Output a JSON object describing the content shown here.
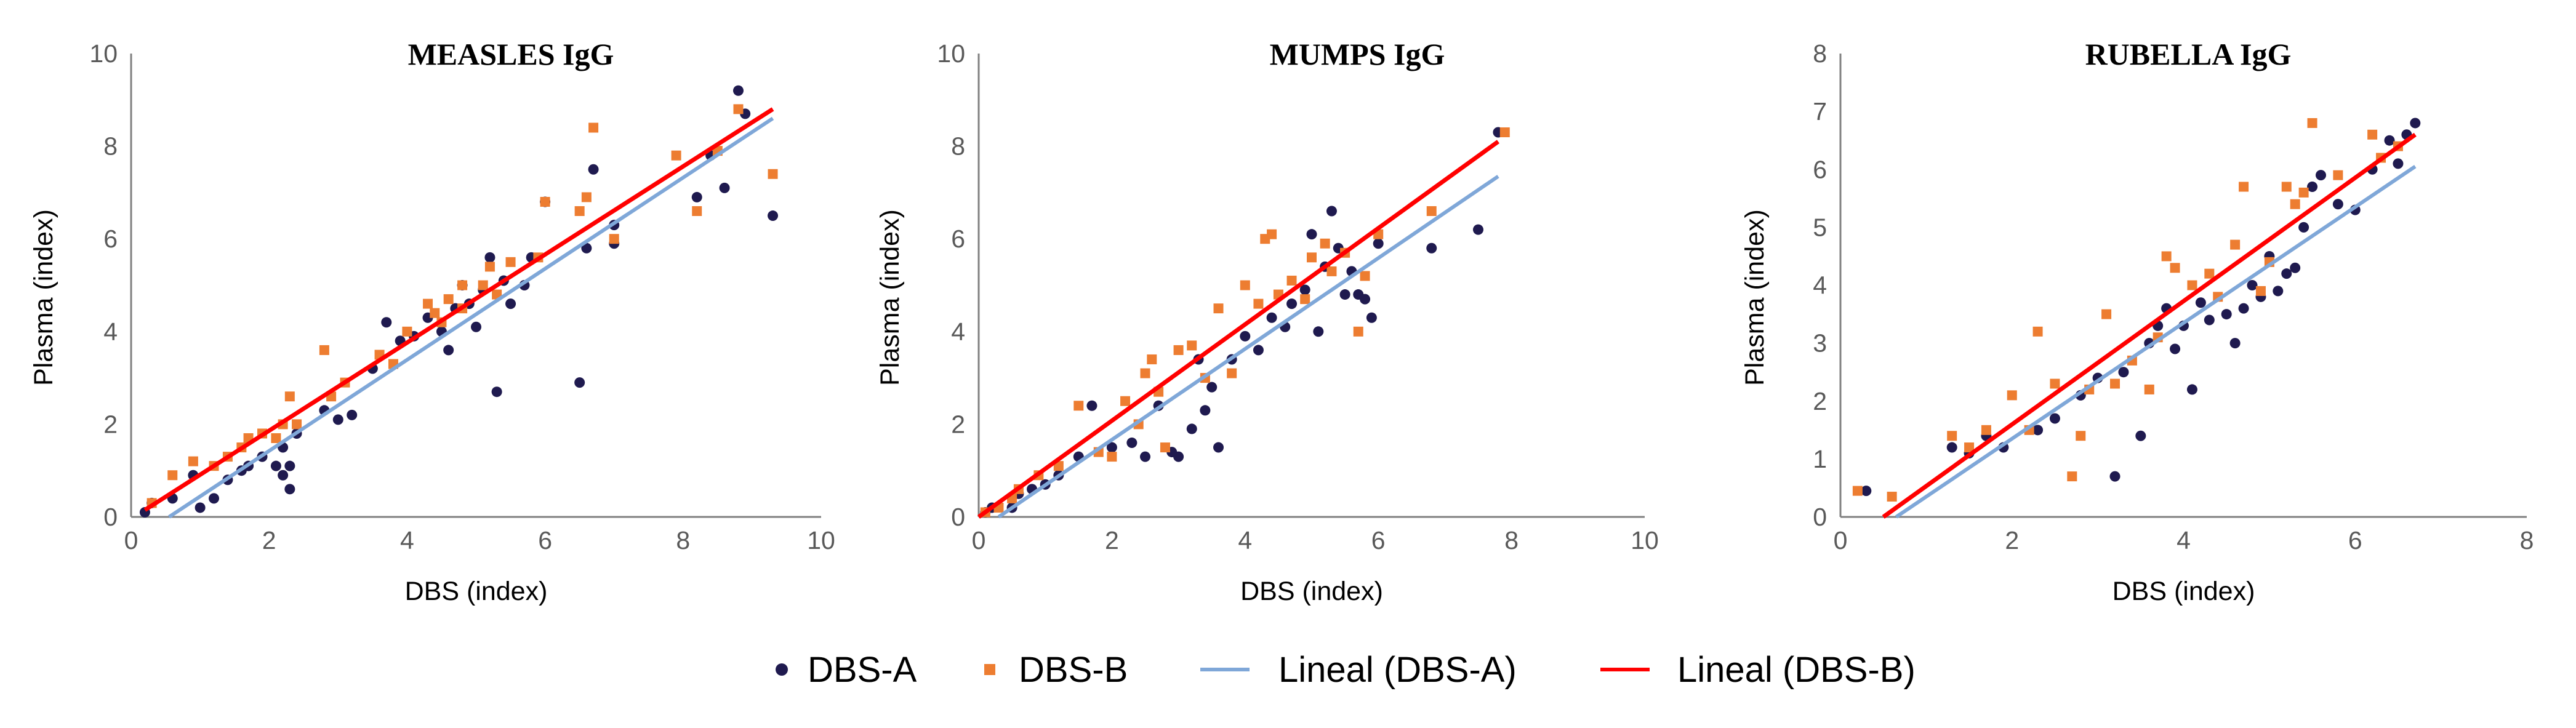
{
  "colors": {
    "dbs_a": "#1f1a4f",
    "dbs_b": "#ed7d31",
    "fit_a": "#7fa7d8",
    "fit_b": "#ff0000",
    "axis": "#808080"
  },
  "legend": [
    {
      "key": "dbs_a",
      "label": "DBS-A",
      "marker": "circle"
    },
    {
      "key": "dbs_b",
      "label": "DBS-B",
      "marker": "square"
    },
    {
      "key": "fit_a",
      "label": "Lineal (DBS-A)",
      "marker": "line"
    },
    {
      "key": "fit_b",
      "label": "Lineal (DBS-B)",
      "marker": "line"
    }
  ],
  "chart_data": [
    {
      "type": "scatter",
      "title": "MEASLES IgG",
      "xlabel": "DBS  (index)",
      "ylabel": "Plasma  (index)",
      "xlim": [
        0,
        10
      ],
      "ylim": [
        0,
        10
      ],
      "xticks": [
        "0",
        "2",
        "4",
        "6",
        "8",
        "10"
      ],
      "yticks": [
        "0",
        "2",
        "4",
        "6",
        "8",
        "10"
      ],
      "series": [
        {
          "name": "DBS-A",
          "points": [
            [
              0.2,
              0.1
            ],
            [
              0.3,
              0.3
            ],
            [
              0.6,
              0.4
            ],
            [
              0.9,
              0.9
            ],
            [
              1.0,
              0.2
            ],
            [
              1.2,
              0.4
            ],
            [
              1.4,
              0.8
            ],
            [
              1.6,
              1.0
            ],
            [
              1.7,
              1.1
            ],
            [
              1.9,
              1.3
            ],
            [
              2.1,
              1.1
            ],
            [
              2.2,
              1.5
            ],
            [
              2.2,
              0.9
            ],
            [
              2.3,
              0.6
            ],
            [
              2.3,
              1.1
            ],
            [
              2.4,
              1.8
            ],
            [
              2.8,
              2.3
            ],
            [
              3.0,
              2.1
            ],
            [
              3.2,
              2.2
            ],
            [
              3.5,
              3.2
            ],
            [
              3.7,
              4.2
            ],
            [
              3.9,
              3.8
            ],
            [
              4.1,
              3.9
            ],
            [
              4.3,
              4.3
            ],
            [
              4.5,
              4.0
            ],
            [
              4.6,
              3.6
            ],
            [
              4.7,
              4.5
            ],
            [
              4.8,
              5.0
            ],
            [
              4.9,
              4.6
            ],
            [
              5.0,
              4.1
            ],
            [
              5.1,
              4.9
            ],
            [
              5.2,
              5.6
            ],
            [
              5.3,
              2.7
            ],
            [
              5.4,
              5.1
            ],
            [
              5.5,
              4.6
            ],
            [
              5.7,
              5.0
            ],
            [
              5.8,
              5.6
            ],
            [
              6.0,
              6.8
            ],
            [
              6.5,
              2.9
            ],
            [
              6.6,
              5.8
            ],
            [
              6.7,
              7.5
            ],
            [
              7.0,
              6.3
            ],
            [
              7.0,
              5.9
            ],
            [
              8.2,
              6.9
            ],
            [
              8.4,
              7.8
            ],
            [
              8.6,
              7.1
            ],
            [
              8.8,
              9.2
            ],
            [
              8.9,
              8.7
            ],
            [
              9.3,
              6.5
            ]
          ]
        },
        {
          "name": "DBS-B",
          "points": [
            [
              0.3,
              0.3
            ],
            [
              0.6,
              0.9
            ],
            [
              0.9,
              1.2
            ],
            [
              1.2,
              1.1
            ],
            [
              1.4,
              1.3
            ],
            [
              1.6,
              1.5
            ],
            [
              1.7,
              1.7
            ],
            [
              1.9,
              1.8
            ],
            [
              2.1,
              1.7
            ],
            [
              2.2,
              2.0
            ],
            [
              2.3,
              2.6
            ],
            [
              2.4,
              2.0
            ],
            [
              2.8,
              3.6
            ],
            [
              2.9,
              2.6
            ],
            [
              3.1,
              2.9
            ],
            [
              3.6,
              3.5
            ],
            [
              3.8,
              3.3
            ],
            [
              4.0,
              4.0
            ],
            [
              4.3,
              4.6
            ],
            [
              4.4,
              4.4
            ],
            [
              4.5,
              4.2
            ],
            [
              4.6,
              4.7
            ],
            [
              4.8,
              5.0
            ],
            [
              4.8,
              4.5
            ],
            [
              5.1,
              5.0
            ],
            [
              5.2,
              5.4
            ],
            [
              5.3,
              4.8
            ],
            [
              5.5,
              5.5
            ],
            [
              5.9,
              5.6
            ],
            [
              6.0,
              6.8
            ],
            [
              6.5,
              6.6
            ],
            [
              6.6,
              6.9
            ],
            [
              6.7,
              8.4
            ],
            [
              7.0,
              6.0
            ],
            [
              7.9,
              7.8
            ],
            [
              8.2,
              6.6
            ],
            [
              8.5,
              7.9
            ],
            [
              8.8,
              8.8
            ],
            [
              9.3,
              7.4
            ]
          ]
        }
      ],
      "fit_a": {
        "x": [
          0.55,
          9.3
        ],
        "y": [
          0.0,
          8.6
        ]
      },
      "fit_b": {
        "x": [
          0.2,
          9.3
        ],
        "y": [
          0.15,
          8.8
        ]
      }
    },
    {
      "type": "scatter",
      "title": "MUMPS IgG",
      "xlabel": "DBS  (index)",
      "ylabel": "Plasma  (index)",
      "xlim": [
        0,
        10
      ],
      "ylim": [
        0,
        10
      ],
      "xticks": [
        "0",
        "2",
        "4",
        "6",
        "8",
        "10"
      ],
      "yticks": [
        "0",
        "2",
        "4",
        "6",
        "8",
        "10"
      ],
      "series": [
        {
          "name": "DBS-A",
          "points": [
            [
              0.1,
              0.1
            ],
            [
              0.2,
              0.2
            ],
            [
              0.5,
              0.2
            ],
            [
              0.6,
              0.5
            ],
            [
              0.8,
              0.6
            ],
            [
              1.0,
              0.7
            ],
            [
              1.2,
              0.9
            ],
            [
              1.5,
              1.3
            ],
            [
              1.7,
              2.4
            ],
            [
              2.0,
              1.5
            ],
            [
              2.3,
              1.6
            ],
            [
              2.5,
              1.3
            ],
            [
              2.7,
              2.4
            ],
            [
              2.9,
              1.4
            ],
            [
              3.0,
              1.3
            ],
            [
              3.2,
              1.9
            ],
            [
              3.3,
              3.4
            ],
            [
              3.4,
              2.3
            ],
            [
              3.5,
              2.8
            ],
            [
              3.6,
              1.5
            ],
            [
              3.8,
              3.4
            ],
            [
              4.0,
              3.9
            ],
            [
              4.2,
              3.6
            ],
            [
              4.4,
              4.3
            ],
            [
              4.6,
              4.1
            ],
            [
              4.7,
              4.6
            ],
            [
              4.9,
              4.9
            ],
            [
              5.0,
              6.1
            ],
            [
              5.1,
              4.0
            ],
            [
              5.2,
              5.4
            ],
            [
              5.3,
              6.6
            ],
            [
              5.4,
              5.8
            ],
            [
              5.5,
              4.8
            ],
            [
              5.6,
              5.3
            ],
            [
              5.7,
              4.8
            ],
            [
              5.8,
              4.7
            ],
            [
              5.9,
              4.3
            ],
            [
              6.0,
              5.9
            ],
            [
              6.8,
              5.8
            ],
            [
              7.5,
              6.2
            ],
            [
              7.8,
              8.3
            ]
          ]
        },
        {
          "name": "DBS-B",
          "points": [
            [
              0.1,
              0.1
            ],
            [
              0.3,
              0.2
            ],
            [
              0.5,
              0.4
            ],
            [
              0.6,
              0.6
            ],
            [
              0.9,
              0.9
            ],
            [
              1.2,
              1.1
            ],
            [
              1.5,
              2.4
            ],
            [
              1.8,
              1.4
            ],
            [
              2.0,
              1.3
            ],
            [
              2.2,
              2.5
            ],
            [
              2.4,
              2.0
            ],
            [
              2.5,
              3.1
            ],
            [
              2.6,
              3.4
            ],
            [
              2.7,
              2.7
            ],
            [
              2.8,
              1.5
            ],
            [
              3.0,
              3.6
            ],
            [
              3.2,
              3.7
            ],
            [
              3.4,
              3.0
            ],
            [
              3.6,
              4.5
            ],
            [
              3.8,
              3.1
            ],
            [
              4.0,
              5.0
            ],
            [
              4.2,
              4.6
            ],
            [
              4.3,
              6.0
            ],
            [
              4.4,
              6.1
            ],
            [
              4.5,
              4.8
            ],
            [
              4.7,
              5.1
            ],
            [
              4.9,
              4.7
            ],
            [
              5.0,
              5.6
            ],
            [
              5.2,
              5.9
            ],
            [
              5.3,
              5.3
            ],
            [
              5.5,
              5.7
            ],
            [
              5.7,
              4.0
            ],
            [
              5.8,
              5.2
            ],
            [
              6.0,
              6.1
            ],
            [
              6.8,
              6.6
            ],
            [
              7.9,
              8.3
            ]
          ]
        }
      ],
      "fit_a": {
        "x": [
          0.3,
          7.8
        ],
        "y": [
          0.0,
          7.35
        ]
      },
      "fit_b": {
        "x": [
          0.0,
          7.8
        ],
        "y": [
          0.0,
          8.1
        ]
      }
    },
    {
      "type": "scatter",
      "title": "RUBELLA IgG",
      "xlabel": "DBS  (index)",
      "ylabel": "Plasma  (index)",
      "xlim": [
        0,
        8
      ],
      "ylim": [
        0,
        8
      ],
      "xticks": [
        "0",
        "2",
        "4",
        "6",
        "8"
      ],
      "yticks": [
        "0",
        "1",
        "2",
        "3",
        "4",
        "5",
        "6",
        "7",
        "8"
      ],
      "series": [
        {
          "name": "DBS-A",
          "points": [
            [
              0.3,
              0.45
            ],
            [
              1.3,
              1.2
            ],
            [
              1.5,
              1.1
            ],
            [
              1.7,
              1.4
            ],
            [
              1.9,
              1.2
            ],
            [
              2.3,
              1.5
            ],
            [
              2.5,
              1.7
            ],
            [
              2.8,
              2.1
            ],
            [
              3.0,
              2.4
            ],
            [
              3.2,
              0.7
            ],
            [
              3.3,
              2.5
            ],
            [
              3.5,
              1.4
            ],
            [
              3.6,
              3.0
            ],
            [
              3.7,
              3.3
            ],
            [
              3.8,
              3.6
            ],
            [
              3.9,
              2.9
            ],
            [
              4.0,
              3.3
            ],
            [
              4.1,
              2.2
            ],
            [
              4.2,
              3.7
            ],
            [
              4.3,
              3.4
            ],
            [
              4.5,
              3.5
            ],
            [
              4.6,
              3.0
            ],
            [
              4.7,
              3.6
            ],
            [
              4.8,
              4.0
            ],
            [
              4.9,
              3.8
            ],
            [
              5.0,
              4.5
            ],
            [
              5.1,
              3.9
            ],
            [
              5.2,
              4.2
            ],
            [
              5.3,
              4.3
            ],
            [
              5.4,
              5.0
            ],
            [
              5.5,
              5.7
            ],
            [
              5.6,
              5.9
            ],
            [
              5.8,
              5.4
            ],
            [
              6.0,
              5.3
            ],
            [
              6.2,
              6.0
            ],
            [
              6.4,
              6.5
            ],
            [
              6.5,
              6.1
            ],
            [
              6.6,
              6.6
            ],
            [
              6.7,
              6.8
            ]
          ]
        },
        {
          "name": "DBS-B",
          "points": [
            [
              0.2,
              0.45
            ],
            [
              0.6,
              0.35
            ],
            [
              1.3,
              1.4
            ],
            [
              1.5,
              1.2
            ],
            [
              1.7,
              1.5
            ],
            [
              2.0,
              2.1
            ],
            [
              2.2,
              1.5
            ],
            [
              2.3,
              3.2
            ],
            [
              2.5,
              2.3
            ],
            [
              2.7,
              0.7
            ],
            [
              2.8,
              1.4
            ],
            [
              2.9,
              2.2
            ],
            [
              3.1,
              3.5
            ],
            [
              3.2,
              2.3
            ],
            [
              3.4,
              2.7
            ],
            [
              3.6,
              2.2
            ],
            [
              3.7,
              3.1
            ],
            [
              3.8,
              4.5
            ],
            [
              3.9,
              4.3
            ],
            [
              4.1,
              4.0
            ],
            [
              4.3,
              4.2
            ],
            [
              4.4,
              3.8
            ],
            [
              4.6,
              4.7
            ],
            [
              4.7,
              5.7
            ],
            [
              4.9,
              3.9
            ],
            [
              5.0,
              4.4
            ],
            [
              5.2,
              5.7
            ],
            [
              5.3,
              5.4
            ],
            [
              5.4,
              5.6
            ],
            [
              5.5,
              6.8
            ],
            [
              5.8,
              5.9
            ],
            [
              6.2,
              6.6
            ],
            [
              6.3,
              6.2
            ],
            [
              6.5,
              6.4
            ]
          ]
        }
      ],
      "fit_a": {
        "x": [
          0.65,
          6.7
        ],
        "y": [
          0.0,
          6.05
        ]
      },
      "fit_b": {
        "x": [
          0.5,
          6.7
        ],
        "y": [
          0.0,
          6.6
        ]
      }
    }
  ]
}
